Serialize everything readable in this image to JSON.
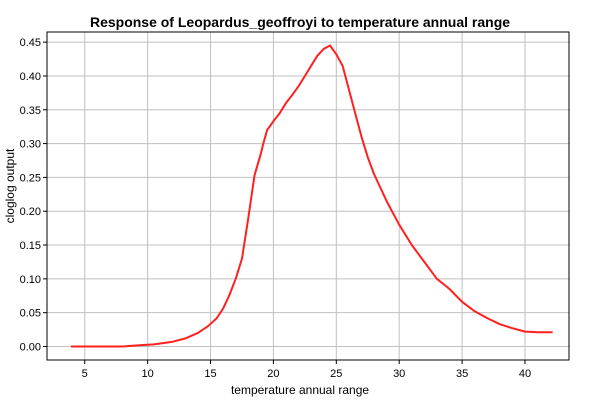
{
  "chart_data": {
    "type": "line",
    "title": "Response of Leopardus_geoffroyi to temperature annual range",
    "xlabel": "temperature annual range",
    "ylabel": "cloglog output",
    "xlim": [
      2.0,
      43.5
    ],
    "ylim": [
      -0.02,
      0.465
    ],
    "xticks": [
      5,
      10,
      15,
      20,
      25,
      30,
      35,
      40
    ],
    "yticks": [
      0.0,
      0.05,
      0.1,
      0.15,
      0.2,
      0.25,
      0.3,
      0.35,
      0.4,
      0.45
    ],
    "ytick_labels": [
      "0.00",
      "0.05",
      "0.10",
      "0.15",
      "0.20",
      "0.25",
      "0.30",
      "0.35",
      "0.40",
      "0.45"
    ],
    "grid": true,
    "series": [
      {
        "color": "#ff2020",
        "x": [
          3.9,
          6.0,
          8.0,
          9.5,
          10.5,
          12.0,
          13.0,
          14.0,
          14.8,
          15.5,
          16.0,
          16.5,
          17.0,
          17.5,
          18.0,
          18.5,
          19.0,
          19.2,
          19.5,
          20.0,
          20.5,
          21.0,
          21.5,
          22.0,
          22.5,
          23.0,
          23.5,
          24.0,
          24.5,
          25.0,
          25.5,
          26.0,
          26.5,
          27.0,
          27.5,
          28.0,
          28.5,
          29.0,
          30.0,
          31.0,
          32.0,
          33.0,
          34.0,
          35.0,
          36.0,
          37.0,
          38.0,
          39.0,
          40.0,
          41.0,
          42.2
        ],
        "y": [
          0.0,
          0.0,
          0.0,
          0.002,
          0.003,
          0.007,
          0.012,
          0.02,
          0.03,
          0.042,
          0.056,
          0.076,
          0.1,
          0.13,
          0.19,
          0.253,
          0.285,
          0.3,
          0.32,
          0.333,
          0.345,
          0.36,
          0.372,
          0.385,
          0.4,
          0.415,
          0.43,
          0.44,
          0.445,
          0.432,
          0.415,
          0.38,
          0.345,
          0.31,
          0.28,
          0.255,
          0.235,
          0.215,
          0.18,
          0.15,
          0.125,
          0.1,
          0.085,
          0.066,
          0.052,
          0.042,
          0.033,
          0.027,
          0.022,
          0.021,
          0.021
        ]
      }
    ]
  }
}
